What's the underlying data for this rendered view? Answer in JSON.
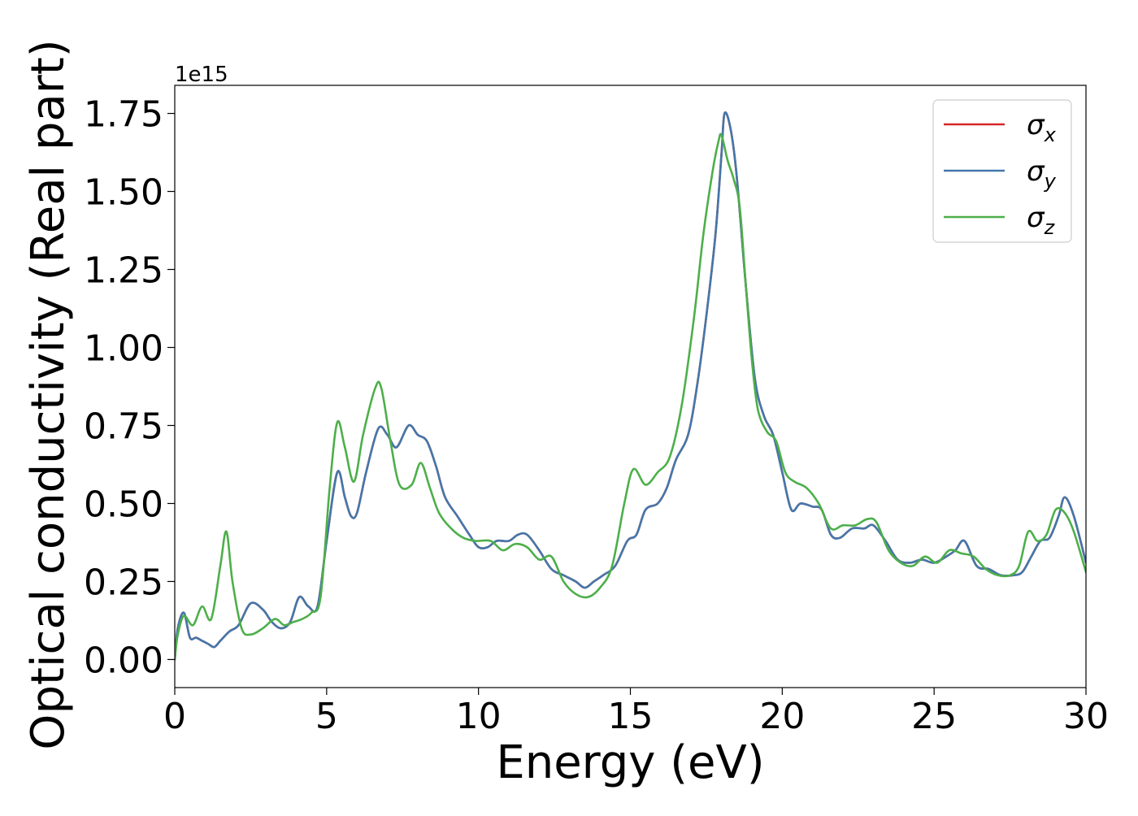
{
  "chart_data": {
    "type": "line",
    "xlabel": "Energy (eV)",
    "ylabel": "Optical conductivity (Real part)",
    "offset_text": "1e15",
    "xlim": [
      0,
      30
    ],
    "ylim": [
      -0.09,
      1.84
    ],
    "x_ticks": [
      0,
      5,
      10,
      15,
      20,
      25,
      30
    ],
    "x_tick_labels": [
      "0",
      "5",
      "10",
      "15",
      "20",
      "25",
      "30"
    ],
    "y_ticks": [
      0.0,
      0.25,
      0.5,
      0.75,
      1.0,
      1.25,
      1.5,
      1.75
    ],
    "y_tick_labels": [
      "0.00",
      "0.25",
      "0.50",
      "0.75",
      "1.00",
      "1.25",
      "1.50",
      "1.75"
    ],
    "grid": false,
    "legend_position": "top-right",
    "series": [
      {
        "name": "σx",
        "name_base": "σ",
        "name_sub": "x",
        "color": "#d62728",
        "x": [
          0,
          0.1,
          0.3,
          0.5,
          0.7,
          0.9,
          1.1,
          1.3,
          1.5,
          1.8,
          2.1,
          2.5,
          2.9,
          3.2,
          3.5,
          3.8,
          4.1,
          4.4,
          4.7,
          5.0,
          5.35,
          5.6,
          5.8,
          6.0,
          6.3,
          6.7,
          7.0,
          7.3,
          7.7,
          8.0,
          8.3,
          8.6,
          8.9,
          9.3,
          9.7,
          10.0,
          10.3,
          10.6,
          11.0,
          11.3,
          11.6,
          12.0,
          12.4,
          12.8,
          13.2,
          13.5,
          13.8,
          14.1,
          14.5,
          14.9,
          15.2,
          15.5,
          15.9,
          16.2,
          16.5,
          16.9,
          17.2,
          17.5,
          17.8,
          18.0,
          18.1,
          18.3,
          18.5,
          18.8,
          19.1,
          19.4,
          19.7,
          20.0,
          20.3,
          20.6,
          21.0,
          21.3,
          21.6,
          21.9,
          22.3,
          22.7,
          23.0,
          23.4,
          23.8,
          24.2,
          24.6,
          25.0,
          25.4,
          25.7,
          26.0,
          26.4,
          26.8,
          27.2,
          27.6,
          27.9,
          28.2,
          28.5,
          28.8,
          29.1,
          29.3,
          29.6,
          30.0
        ],
        "y": [
          0.0,
          0.1,
          0.15,
          0.07,
          0.07,
          0.06,
          0.05,
          0.04,
          0.06,
          0.09,
          0.11,
          0.18,
          0.16,
          0.12,
          0.1,
          0.12,
          0.2,
          0.17,
          0.17,
          0.38,
          0.6,
          0.52,
          0.46,
          0.47,
          0.6,
          0.74,
          0.72,
          0.68,
          0.75,
          0.72,
          0.7,
          0.62,
          0.52,
          0.46,
          0.4,
          0.36,
          0.36,
          0.38,
          0.38,
          0.4,
          0.4,
          0.35,
          0.29,
          0.27,
          0.25,
          0.23,
          0.25,
          0.27,
          0.3,
          0.38,
          0.4,
          0.48,
          0.5,
          0.55,
          0.64,
          0.72,
          0.88,
          1.1,
          1.36,
          1.62,
          1.75,
          1.7,
          1.55,
          1.2,
          0.9,
          0.78,
          0.72,
          0.6,
          0.48,
          0.5,
          0.49,
          0.48,
          0.4,
          0.39,
          0.42,
          0.42,
          0.43,
          0.38,
          0.32,
          0.31,
          0.32,
          0.31,
          0.33,
          0.35,
          0.38,
          0.3,
          0.29,
          0.27,
          0.27,
          0.28,
          0.33,
          0.38,
          0.39,
          0.46,
          0.52,
          0.46,
          0.31
        ]
      },
      {
        "name": "σy",
        "name_base": "σ",
        "name_sub": "y",
        "color": "#4477aa",
        "x": [
          0,
          0.1,
          0.3,
          0.5,
          0.7,
          0.9,
          1.1,
          1.3,
          1.5,
          1.8,
          2.1,
          2.5,
          2.9,
          3.2,
          3.5,
          3.8,
          4.1,
          4.4,
          4.7,
          5.0,
          5.35,
          5.6,
          5.8,
          6.0,
          6.3,
          6.7,
          7.0,
          7.3,
          7.7,
          8.0,
          8.3,
          8.6,
          8.9,
          9.3,
          9.7,
          10.0,
          10.3,
          10.6,
          11.0,
          11.3,
          11.6,
          12.0,
          12.4,
          12.8,
          13.2,
          13.5,
          13.8,
          14.1,
          14.5,
          14.9,
          15.2,
          15.5,
          15.9,
          16.2,
          16.5,
          16.9,
          17.2,
          17.5,
          17.8,
          18.0,
          18.1,
          18.3,
          18.5,
          18.8,
          19.1,
          19.4,
          19.7,
          20.0,
          20.3,
          20.6,
          21.0,
          21.3,
          21.6,
          21.9,
          22.3,
          22.7,
          23.0,
          23.4,
          23.8,
          24.2,
          24.6,
          25.0,
          25.4,
          25.7,
          26.0,
          26.4,
          26.8,
          27.2,
          27.6,
          27.9,
          28.2,
          28.5,
          28.8,
          29.1,
          29.3,
          29.6,
          30.0
        ],
        "y": [
          0.0,
          0.1,
          0.15,
          0.07,
          0.07,
          0.06,
          0.05,
          0.04,
          0.06,
          0.09,
          0.11,
          0.18,
          0.16,
          0.12,
          0.1,
          0.12,
          0.2,
          0.17,
          0.17,
          0.38,
          0.6,
          0.52,
          0.46,
          0.47,
          0.6,
          0.74,
          0.72,
          0.68,
          0.75,
          0.72,
          0.7,
          0.62,
          0.52,
          0.46,
          0.4,
          0.36,
          0.36,
          0.38,
          0.38,
          0.4,
          0.4,
          0.35,
          0.29,
          0.27,
          0.25,
          0.23,
          0.25,
          0.27,
          0.3,
          0.38,
          0.4,
          0.48,
          0.5,
          0.55,
          0.64,
          0.72,
          0.88,
          1.1,
          1.36,
          1.62,
          1.75,
          1.7,
          1.55,
          1.2,
          0.9,
          0.78,
          0.72,
          0.6,
          0.48,
          0.5,
          0.49,
          0.48,
          0.4,
          0.39,
          0.42,
          0.42,
          0.43,
          0.38,
          0.32,
          0.31,
          0.32,
          0.31,
          0.33,
          0.35,
          0.38,
          0.3,
          0.29,
          0.27,
          0.27,
          0.28,
          0.33,
          0.38,
          0.39,
          0.46,
          0.52,
          0.46,
          0.31
        ]
      },
      {
        "name": "σz",
        "name_base": "σ",
        "name_sub": "z",
        "color": "#4daf4a",
        "x": [
          0,
          0.1,
          0.3,
          0.6,
          0.9,
          1.2,
          1.5,
          1.7,
          1.9,
          2.2,
          2.5,
          2.9,
          3.3,
          3.6,
          3.9,
          4.2,
          4.5,
          4.8,
          5.1,
          5.35,
          5.6,
          5.9,
          6.2,
          6.6,
          6.8,
          7.1,
          7.4,
          7.8,
          8.1,
          8.4,
          8.7,
          9.1,
          9.5,
          9.9,
          10.4,
          10.8,
          11.2,
          11.6,
          12.0,
          12.4,
          12.8,
          13.2,
          13.6,
          14.0,
          14.4,
          14.8,
          15.1,
          15.5,
          15.9,
          16.3,
          16.7,
          17.1,
          17.4,
          17.7,
          17.9,
          18.0,
          18.2,
          18.4,
          18.6,
          18.8,
          19.0,
          19.2,
          19.5,
          19.8,
          20.1,
          20.4,
          20.8,
          21.2,
          21.6,
          22.0,
          22.4,
          22.8,
          23.1,
          23.5,
          23.9,
          24.3,
          24.7,
          25.1,
          25.5,
          25.9,
          26.3,
          26.7,
          27.1,
          27.5,
          27.8,
          28.1,
          28.4,
          28.7,
          29.0,
          29.3,
          29.6,
          30.0
        ],
        "y": [
          0.0,
          0.08,
          0.14,
          0.11,
          0.17,
          0.13,
          0.3,
          0.41,
          0.25,
          0.1,
          0.08,
          0.1,
          0.13,
          0.11,
          0.12,
          0.13,
          0.15,
          0.2,
          0.55,
          0.76,
          0.68,
          0.57,
          0.72,
          0.87,
          0.87,
          0.7,
          0.56,
          0.56,
          0.63,
          0.55,
          0.47,
          0.42,
          0.39,
          0.38,
          0.38,
          0.35,
          0.37,
          0.36,
          0.32,
          0.33,
          0.25,
          0.21,
          0.2,
          0.23,
          0.3,
          0.5,
          0.61,
          0.56,
          0.6,
          0.65,
          0.82,
          1.1,
          1.36,
          1.56,
          1.66,
          1.68,
          1.6,
          1.54,
          1.45,
          1.2,
          0.96,
          0.8,
          0.73,
          0.7,
          0.6,
          0.57,
          0.55,
          0.5,
          0.42,
          0.43,
          0.43,
          0.45,
          0.44,
          0.35,
          0.31,
          0.3,
          0.33,
          0.31,
          0.35,
          0.34,
          0.33,
          0.29,
          0.27,
          0.27,
          0.3,
          0.41,
          0.38,
          0.4,
          0.48,
          0.47,
          0.41,
          0.28
        ]
      }
    ]
  }
}
